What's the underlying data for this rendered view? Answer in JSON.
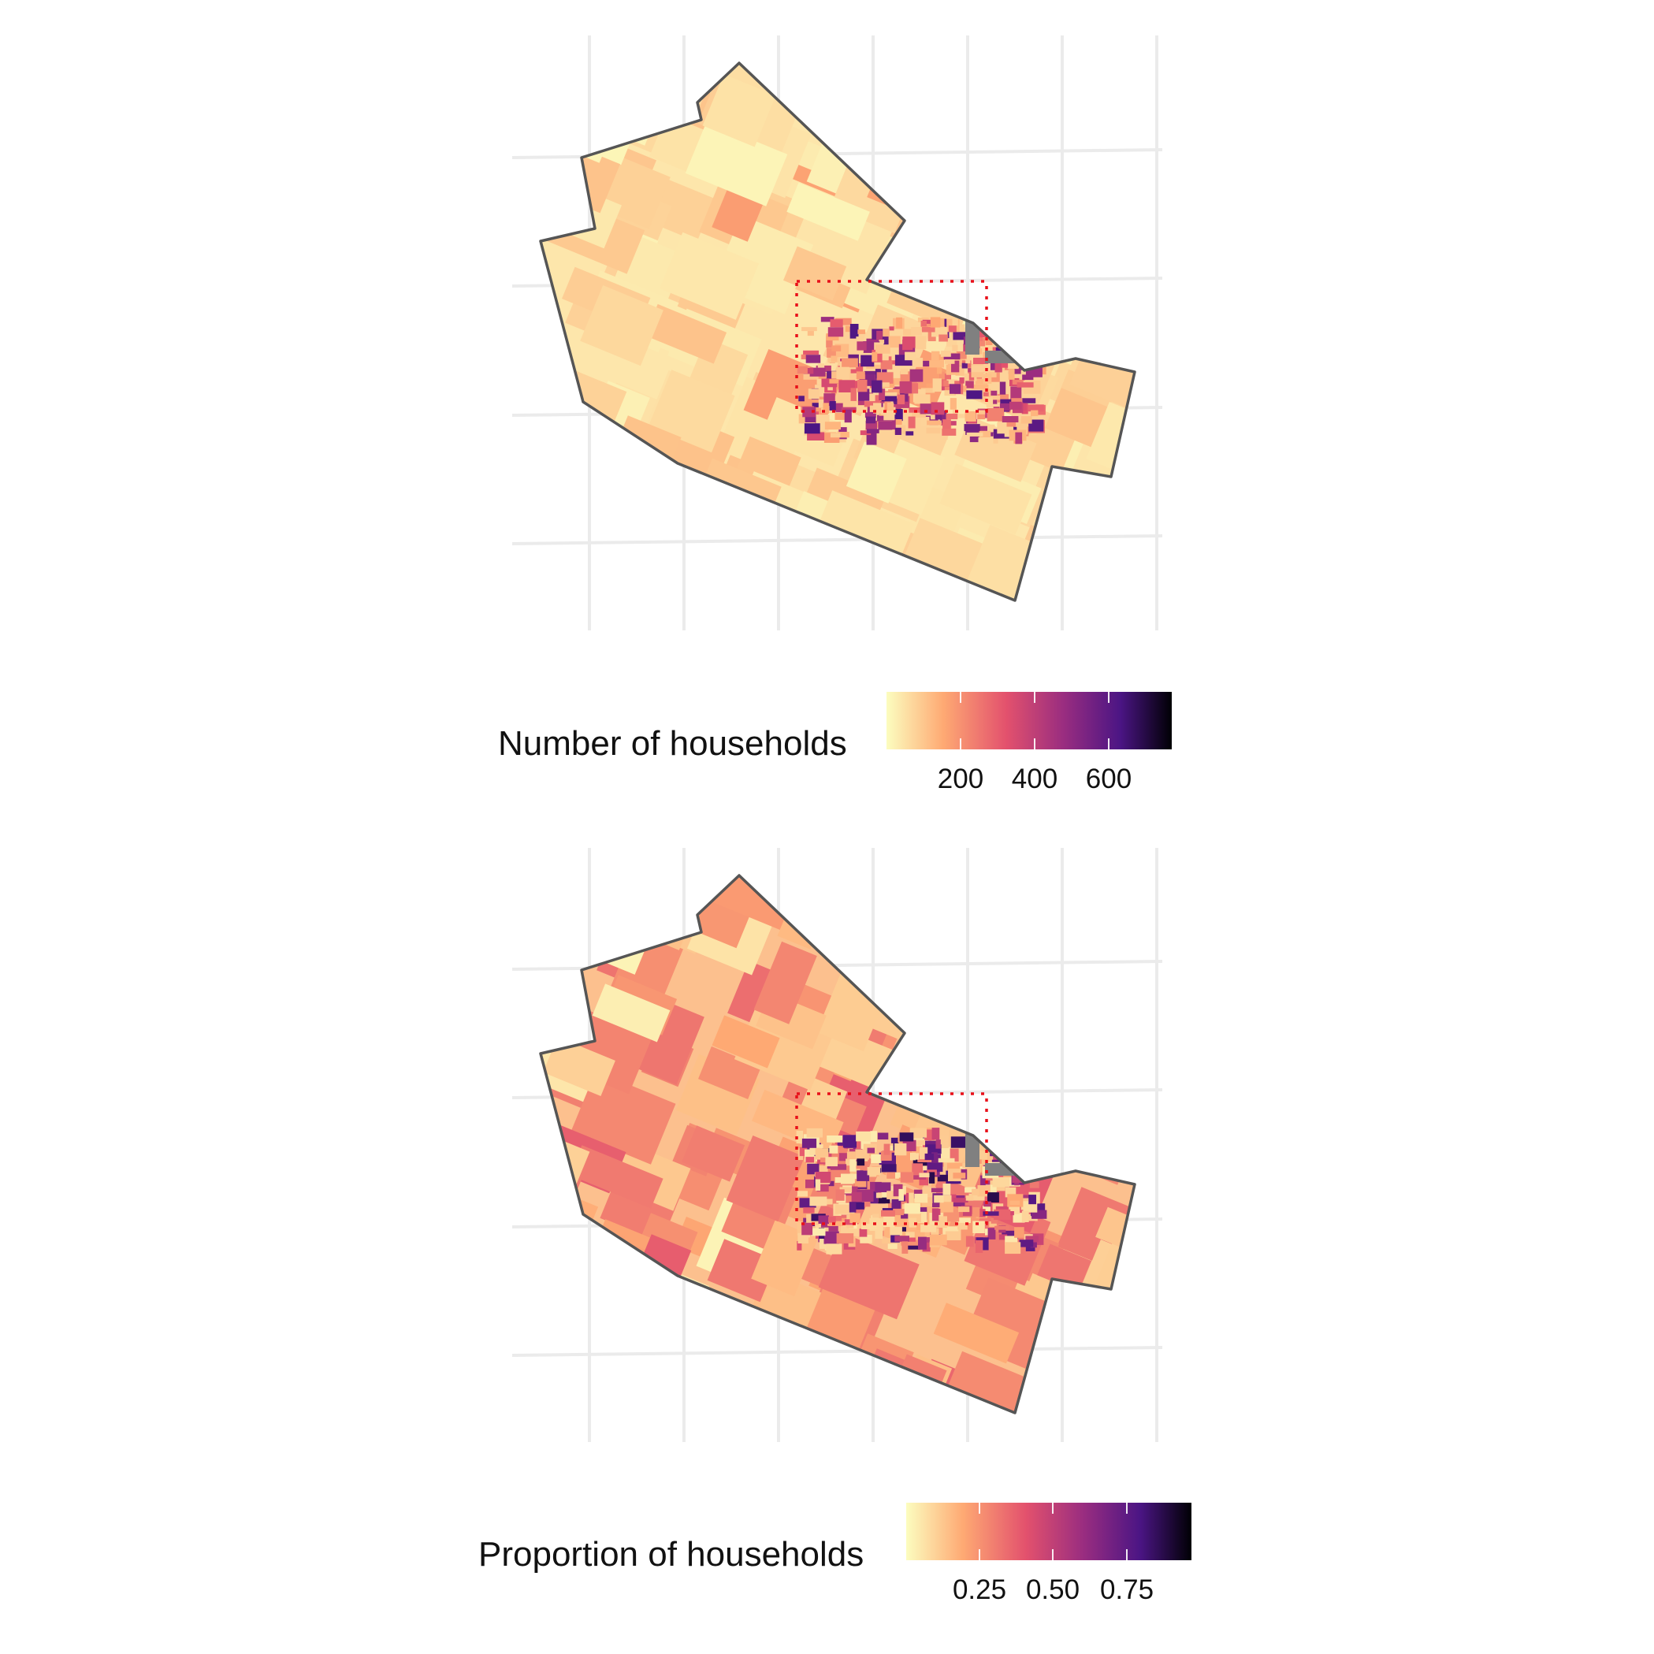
{
  "panels": [
    {
      "id": "households",
      "legend": {
        "title": "Number of households",
        "ticks": [
          "200",
          "400",
          "600"
        ]
      },
      "palette": [
        "#fcfdbf",
        "#fea973",
        "#e3516d",
        "#9a2d80",
        "#4b1584",
        "#000004"
      ],
      "fill_mode": "count",
      "highlight_box": "red dotted"
    },
    {
      "id": "proportion",
      "legend": {
        "title": "Proportion of households",
        "ticks": [
          "0.25",
          "0.50",
          "0.75"
        ]
      },
      "palette": [
        "#fcfdbf",
        "#fea973",
        "#e3516d",
        "#9a2d80",
        "#4b1584",
        "#000004"
      ],
      "fill_mode": "proportion",
      "highlight_box": "red dotted"
    }
  ],
  "colors": {
    "boundary": "#555555",
    "grid": "#ebebeb",
    "highlight": "#e8101a",
    "water": "#808080"
  }
}
